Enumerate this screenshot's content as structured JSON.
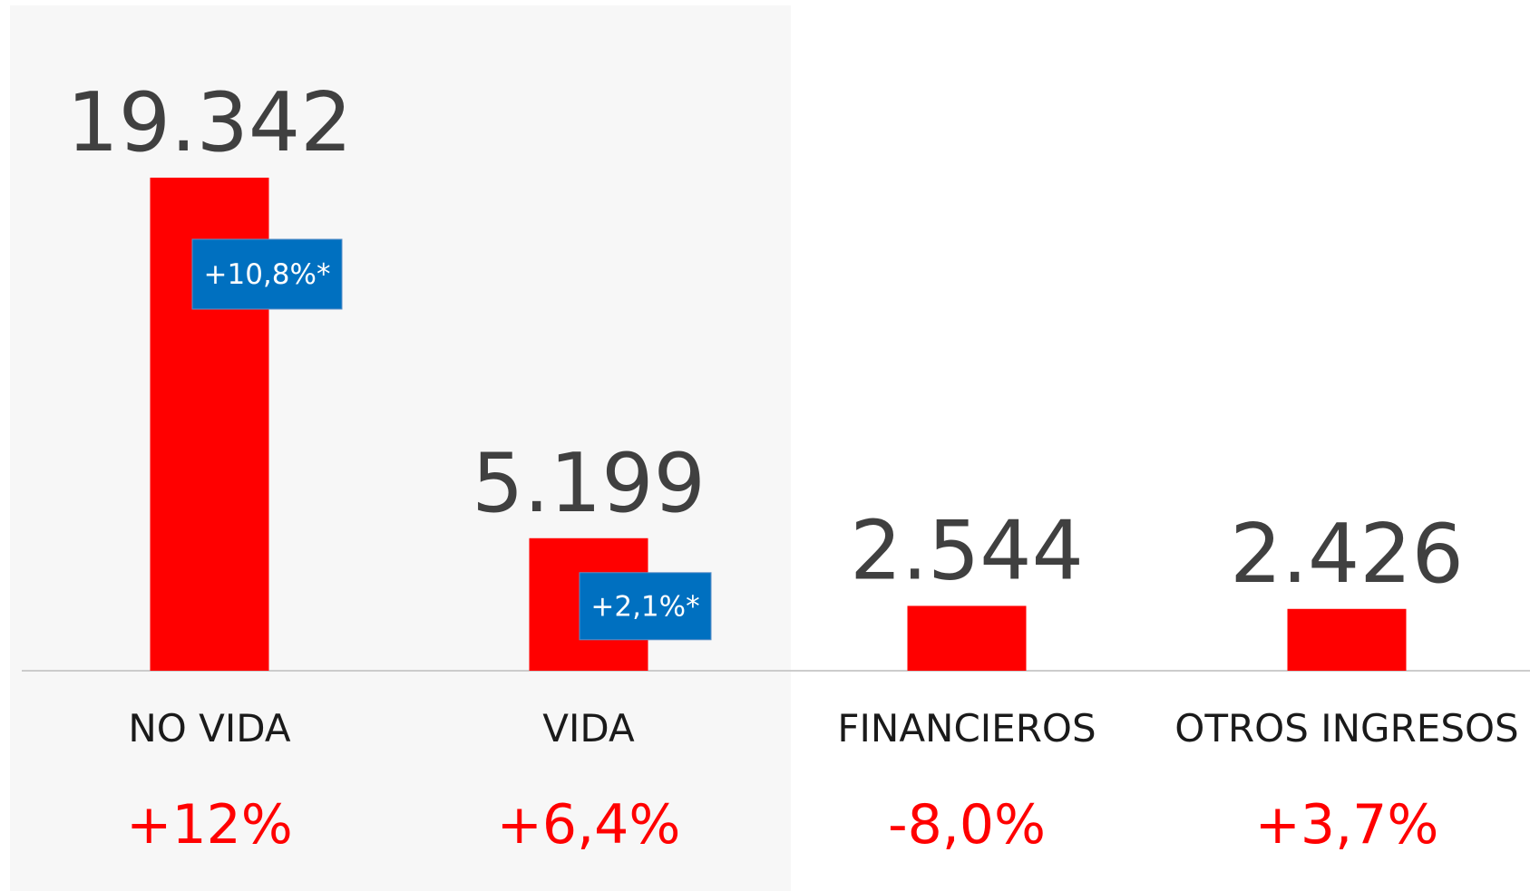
{
  "chart_data": {
    "type": "bar",
    "categories": [
      "NO VIDA",
      "VIDA",
      "FINANCIEROS",
      "OTROS INGRESOS"
    ],
    "values": [
      19342,
      5199,
      2544,
      2426
    ],
    "value_labels": [
      "19.342",
      "5.199",
      "2.544",
      "2.426"
    ],
    "color": "#ff0000",
    "change_labels": [
      "+12%",
      "+6,4%",
      "-8,0%",
      "+3,7%"
    ],
    "badge_labels": [
      "+10,8%*",
      "+2,1%*",
      null,
      null
    ],
    "badge_color": "#0070c0"
  }
}
